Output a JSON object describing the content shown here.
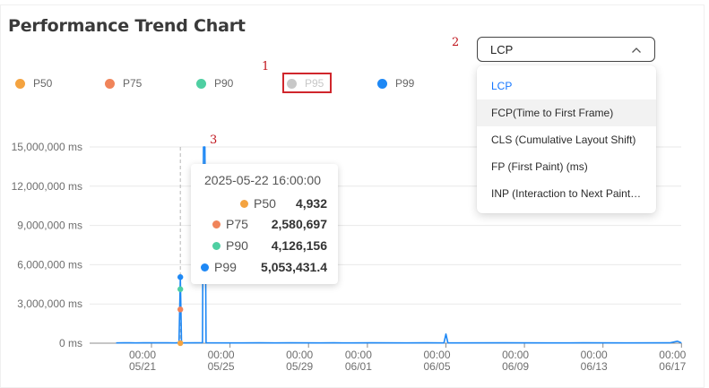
{
  "page": {
    "title": "Performance Trend Chart",
    "markers": [
      "1",
      "2",
      "3"
    ]
  },
  "metric_select": {
    "selected": "LCP",
    "options": [
      "LCP",
      "FCP(Time to First Frame)",
      "CLS (Cumulative Layout Shift)",
      "FP (First Paint) (ms)",
      "INP (Interaction to Next Paint)"
    ],
    "options_display": [
      "LCP",
      "FCP(Time to First Frame)",
      "CLS (Cumulative Layout Shift)",
      "FP (First Paint) (ms)",
      "INP (Interaction to Next Paint…"
    ],
    "hovered_option": "FCP(Time to First Frame)"
  },
  "legend": [
    {
      "name": "P50",
      "color": "#f4a340",
      "enabled": true
    },
    {
      "name": "P75",
      "color": "#f0845a",
      "enabled": true
    },
    {
      "name": "P90",
      "color": "#4fcfa2",
      "enabled": true
    },
    {
      "name": "P95",
      "color": "#c8c8c8",
      "enabled": false
    },
    {
      "name": "P99",
      "color": "#1e88f5",
      "enabled": true
    }
  ],
  "tooltip": {
    "title": "2025-05-22 16:00:00",
    "rows": [
      {
        "name": "P50",
        "value": "4,932",
        "color": "#f4a340"
      },
      {
        "name": "P75",
        "value": "2,580,697",
        "color": "#f0845a"
      },
      {
        "name": "P90",
        "value": "4,126,156",
        "color": "#4fcfa2"
      },
      {
        "name": "P99",
        "value": "5,053,431.4",
        "color": "#1e88f5"
      }
    ]
  },
  "chart_data": {
    "type": "line",
    "title": "Performance Trend Chart",
    "xlabel": "",
    "ylabel": "",
    "unit": "ms",
    "ylim": [
      0,
      15000000
    ],
    "yticks": [
      0,
      3000000,
      6000000,
      9000000,
      12000000,
      15000000
    ],
    "ytick_labels": [
      "0 ms",
      "3,000,000 ms",
      "6,000,000 ms",
      "9,000,000 ms",
      "12,000,000 ms",
      "15,000,000 ms"
    ],
    "x_tick_labels": [
      "05/21",
      "05/25",
      "05/29",
      "06/01",
      "06/05",
      "06/09",
      "06/13",
      "06/17"
    ],
    "x_tick_days": [
      0,
      4,
      8,
      11,
      15,
      19,
      23,
      27
    ],
    "x_minor_tick_labels": [
      "00:00",
      "00:00",
      "00:00",
      "00:00",
      "00:00",
      "00:00",
      "00:00",
      "00:00"
    ],
    "x_range_days": [
      -2.1,
      27
    ],
    "grid": true,
    "legend_position": "top-left",
    "series": [
      {
        "name": "P99",
        "color": "#1e88f5",
        "points": [
          [
            -1.8,
            20000
          ],
          [
            -1.4,
            30000
          ],
          [
            -1.1,
            25000
          ],
          [
            -0.8,
            20000
          ],
          [
            -0.4,
            30000
          ],
          [
            0.1,
            25000
          ],
          [
            0.8,
            30000
          ],
          [
            1.2,
            20000
          ],
          [
            1.4,
            40000
          ],
          [
            1.47,
            5053431.4
          ],
          [
            1.53,
            20000
          ],
          [
            2.2,
            30000
          ],
          [
            2.6,
            40000
          ],
          [
            2.65,
            15000000
          ],
          [
            2.72,
            15000000
          ],
          [
            2.78,
            30000
          ],
          [
            4.6,
            20000
          ],
          [
            5.5,
            30000
          ],
          [
            6.3,
            20000
          ],
          [
            7.1,
            25000
          ],
          [
            8.6,
            20000
          ],
          [
            9.3,
            30000
          ],
          [
            10.2,
            20000
          ],
          [
            11.2,
            25000
          ],
          [
            13.0,
            20000
          ],
          [
            14.0,
            30000
          ],
          [
            14.9,
            20000
          ],
          [
            15.0,
            700000
          ],
          [
            15.1,
            20000
          ],
          [
            18.0,
            30000
          ],
          [
            20.2,
            20000
          ],
          [
            22.0,
            25000
          ],
          [
            24.2,
            20000
          ],
          [
            26.4,
            25000
          ],
          [
            26.8,
            150000
          ],
          [
            27.0,
            20000
          ]
        ]
      },
      {
        "name": "P90",
        "color": "#4fcfa2",
        "points": [
          [
            1.47,
            4126156
          ]
        ]
      },
      {
        "name": "P75",
        "color": "#f0845a",
        "points": [
          [
            1.47,
            2580697
          ]
        ]
      },
      {
        "name": "P50",
        "color": "#f4a340",
        "points": [
          [
            1.47,
            4932
          ]
        ]
      }
    ],
    "hover_day": 1.47
  }
}
